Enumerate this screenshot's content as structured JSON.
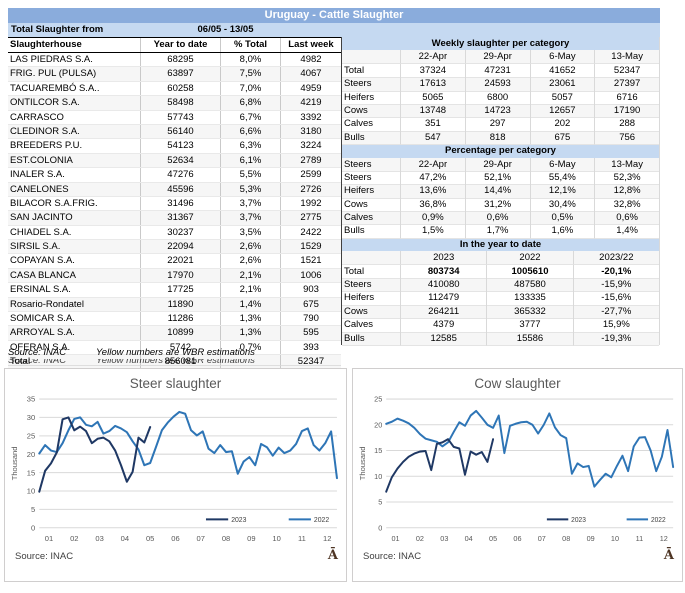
{
  "colors": {
    "title_bar": "#8AACDC",
    "band": "#C5D9F1",
    "series_2023": "#1F3864",
    "series_2022": "#2E75B6",
    "gridline": "#D9D9D9"
  },
  "title_bar": {
    "title": "Uruguay - Cattle Slaughter"
  },
  "left_table": {
    "period_label": "Total Slaughter from",
    "period_value": "06/05 - 13/05",
    "columns": [
      "Slaughterhouse",
      "Year to date",
      "% Total",
      "Last week"
    ],
    "rows": [
      [
        "LAS PIEDRAS S.A.",
        "68295",
        "8,0%",
        "4982"
      ],
      [
        "FRIG. PUL (PULSA)",
        "63897",
        "7,5%",
        "4067"
      ],
      [
        "TACUAREMBÓ S.A..",
        "60258",
        "7,0%",
        "4959"
      ],
      [
        "ONTILCOR S.A.",
        "58498",
        "6,8%",
        "4219"
      ],
      [
        "CARRASCO",
        "57743",
        "6,7%",
        "3392"
      ],
      [
        "CLEDINOR S.A.",
        "56140",
        "6,6%",
        "3180"
      ],
      [
        "BREEDERS P.U.",
        "54123",
        "6,3%",
        "3224"
      ],
      [
        "EST.COLONIA",
        "52634",
        "6,1%",
        "2789"
      ],
      [
        "INALER S.A.",
        "47276",
        "5,5%",
        "2599"
      ],
      [
        "CANELONES",
        "45596",
        "5,3%",
        "2726"
      ],
      [
        "BILACOR S.A.FRIG.",
        "31496",
        "3,7%",
        "1992"
      ],
      [
        "SAN JACINTO",
        "31367",
        "3,7%",
        "2775"
      ],
      [
        "CHIADEL S.A.",
        "30237",
        "3,5%",
        "2422"
      ],
      [
        "SIRSIL S.A.",
        "22094",
        "2,6%",
        "1529"
      ],
      [
        "COPAYAN S.A.",
        "22021",
        "2,6%",
        "1521"
      ],
      [
        "CASA BLANCA",
        "17970",
        "2,1%",
        "1006"
      ],
      [
        "ERSINAL S.A.",
        "17725",
        "2,1%",
        "903"
      ],
      [
        "Rosario-Rondatel",
        "11890",
        "1,4%",
        "675"
      ],
      [
        "SOMICAR S.A.",
        "11286",
        "1,3%",
        "790"
      ],
      [
        "ARROYAL S.A.",
        "10899",
        "1,3%",
        "595"
      ],
      [
        "OFERAN S.A.",
        "5742",
        "0,7%",
        "393"
      ],
      [
        "Total",
        "856081",
        "",
        "52347"
      ]
    ],
    "source_note": "Source: INAC",
    "estimation_note": "Yellow numbers are WBR estimations"
  },
  "right_table": {
    "weekly": {
      "title": "Weekly slaughter per category",
      "columns": [
        "",
        "22-Apr",
        "29-Apr",
        "6-May",
        "13-May"
      ],
      "rows": [
        [
          "Total",
          "37324",
          "47231",
          "41652",
          "52347"
        ],
        [
          "Steers",
          "17613",
          "24593",
          "23061",
          "27397"
        ],
        [
          "Heifers",
          "5065",
          "6800",
          "5057",
          "6716"
        ],
        [
          "Cows",
          "13748",
          "14723",
          "12657",
          "17190"
        ],
        [
          "Calves",
          "351",
          "297",
          "202",
          "288"
        ],
        [
          "Bulls",
          "547",
          "818",
          "675",
          "756"
        ]
      ]
    },
    "percentage": {
      "title": "Percentage per category",
      "columns": [
        "Steers",
        "22-Apr",
        "29-Apr",
        "6-May",
        "13-May"
      ],
      "rows": [
        [
          "Steers",
          "47,2%",
          "52,1%",
          "55,4%",
          "52,3%"
        ],
        [
          "Heifers",
          "13,6%",
          "14,4%",
          "12,1%",
          "12,8%"
        ],
        [
          "Cows",
          "36,8%",
          "31,2%",
          "30,4%",
          "32,8%"
        ],
        [
          "Calves",
          "0,9%",
          "0,6%",
          "0,5%",
          "0,6%"
        ],
        [
          "Bulls",
          "1,5%",
          "1,7%",
          "1,6%",
          "1,4%"
        ]
      ]
    },
    "ytd": {
      "title": "In the year to date",
      "columns": [
        "",
        "2023",
        "2022",
        "2023/22"
      ],
      "bold_first_row": true,
      "rows": [
        [
          "Total",
          "803734",
          "1005610",
          "-20,1%"
        ],
        [
          "Steers",
          "410080",
          "487580",
          "-15,9%"
        ],
        [
          "Heifers",
          "112479",
          "133335",
          "-15,6%"
        ],
        [
          "Cows",
          "264211",
          "365332",
          "-27,7%"
        ],
        [
          "Calves",
          "4379",
          "3777",
          "15,9%"
        ],
        [
          "Bulls",
          "12585",
          "15586",
          "-19,3%"
        ]
      ]
    }
  },
  "chart_data": [
    {
      "type": "line",
      "title": "Steer slaughter",
      "ylabel": "Thousand",
      "ylim": [
        0,
        35
      ],
      "yticks": [
        0,
        5,
        10,
        15,
        20,
        25,
        30,
        35
      ],
      "weeks": 52,
      "xticklabels": [
        "01",
        "02",
        "03",
        "04",
        "05",
        "06",
        "07",
        "08",
        "09",
        "10",
        "11",
        "12"
      ],
      "grid": "horizontal",
      "legend_position": "bottom-right-inside",
      "source": "Source: INAC",
      "corner_glyph": "Ā",
      "series": [
        {
          "name": "2023",
          "color": "#1F3864",
          "values": [
            9.8,
            15.5,
            17.5,
            20.5,
            29.5,
            30.0,
            26.5,
            27.5,
            26.3,
            23.0,
            24.2,
            24.5,
            23.5,
            21.0,
            17.0,
            12.5,
            15.2,
            24.5,
            23.2,
            27.4
          ]
        },
        {
          "name": "2022",
          "color": "#2E75B6",
          "values": [
            20.2,
            22.5,
            21.0,
            20.6,
            23.0,
            26.5,
            29.6,
            30.0,
            28.0,
            27.6,
            28.8,
            25.6,
            26.3,
            27.7,
            27.0,
            26.0,
            23.5,
            21.3,
            17.0,
            17.6,
            22.0,
            26.5,
            28.6,
            30.2,
            31.5,
            31.0,
            26.5,
            25.1,
            26.2,
            21.5,
            20.3,
            22.5,
            20.6,
            20.8,
            14.7,
            18.0,
            19.2,
            17.0,
            22.8,
            21.9,
            19.6,
            21.8,
            20.3,
            21.0,
            22.8,
            26.3,
            27.0,
            22.5,
            21.0,
            23.0,
            26.2,
            13.5
          ]
        }
      ]
    },
    {
      "type": "line",
      "title": "Cow slaughter",
      "ylabel": "Thousand",
      "ylim": [
        0,
        25
      ],
      "yticks": [
        0,
        5,
        10,
        15,
        20,
        25
      ],
      "weeks": 52,
      "xticklabels": [
        "01",
        "02",
        "03",
        "04",
        "05",
        "06",
        "07",
        "08",
        "09",
        "10",
        "11",
        "12"
      ],
      "grid": "horizontal",
      "legend_position": "bottom-right-inside",
      "source": "Source: INAC",
      "corner_glyph": "Ā",
      "series": [
        {
          "name": "2023",
          "color": "#1F3864",
          "values": [
            7.0,
            9.8,
            11.5,
            12.8,
            13.8,
            14.4,
            14.8,
            14.9,
            11.2,
            16.3,
            16.6,
            17.2,
            15.7,
            15.4,
            10.3,
            14.8,
            14.2,
            14.7,
            12.8,
            17.2
          ]
        },
        {
          "name": "2022",
          "color": "#2E75B6",
          "values": [
            20.2,
            20.6,
            21.2,
            20.8,
            20.3,
            19.4,
            18.2,
            17.3,
            17.0,
            16.7,
            15.8,
            16.6,
            18.6,
            20.5,
            19.8,
            21.8,
            22.7,
            21.4,
            20.0,
            19.4,
            21.8,
            14.5,
            19.8,
            20.2,
            20.5,
            20.6,
            20.0,
            18.3,
            20.0,
            22.2,
            19.5,
            18.0,
            17.4,
            10.5,
            12.5,
            11.8,
            12.0,
            8.0,
            9.3,
            10.5,
            9.8,
            12.0,
            14.0,
            11.0,
            15.8,
            17.5,
            17.6,
            15.0,
            11.0,
            13.8,
            19.0,
            11.8
          ]
        }
      ]
    }
  ]
}
